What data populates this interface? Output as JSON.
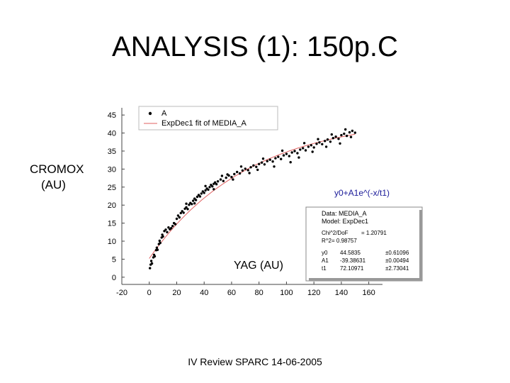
{
  "slide": {
    "title": "ANALYSIS (1): 150p.C",
    "ylabel_line1": "CROMOX",
    "ylabel_line2": "(AU)",
    "xlabel": "YAG (AU)",
    "footer": "IV Review SPARC 14-06-2005"
  },
  "chart_data": {
    "type": "scatter",
    "xlim": [
      -20,
      170
    ],
    "ylim": [
      -2,
      47
    ],
    "xticks": [
      "-20",
      "0",
      "20",
      "40",
      "60",
      "80",
      "100",
      "120",
      "140",
      "160"
    ],
    "yticks": [
      "0",
      "5",
      "10",
      "15",
      "20",
      "25",
      "30",
      "35",
      "40",
      "45"
    ],
    "legend": {
      "placement": "top-left",
      "entries": [
        "A",
        "ExpDec1 fit of MEDIA_A"
      ]
    },
    "series": [
      {
        "name": "A",
        "points": [
          [
            0.5,
            2.5
          ],
          [
            1,
            3.5
          ],
          [
            1.5,
            4.5
          ],
          [
            2,
            3.8
          ],
          [
            3,
            5.5
          ],
          [
            3.5,
            6.2
          ],
          [
            4,
            5.8
          ],
          [
            5,
            7.5
          ],
          [
            5.5,
            8.2
          ],
          [
            6,
            7.6
          ],
          [
            7,
            9.2
          ],
          [
            7.5,
            10.1
          ],
          [
            8,
            9.5
          ],
          [
            9,
            11
          ],
          [
            9.5,
            11.8
          ],
          [
            10,
            11.3
          ],
          [
            11,
            12.8
          ],
          [
            12,
            13.2
          ],
          [
            13,
            12.5
          ],
          [
            14,
            13.8
          ],
          [
            15,
            13.3
          ],
          [
            16,
            13.6
          ],
          [
            17,
            14.2
          ],
          [
            18,
            15
          ],
          [
            19,
            14.7
          ],
          [
            20,
            16.2
          ],
          [
            21,
            17.1
          ],
          [
            22,
            16.6
          ],
          [
            23,
            17.8
          ],
          [
            24,
            18.3
          ],
          [
            25,
            17.9
          ],
          [
            26,
            19
          ],
          [
            27,
            19.4
          ],
          [
            28,
            18.9
          ],
          [
            29,
            20.1
          ],
          [
            30,
            20.6
          ],
          [
            31,
            20.3
          ],
          [
            32,
            21.2
          ],
          [
            33,
            21.8
          ],
          [
            34,
            21.4
          ],
          [
            35,
            22.3
          ],
          [
            36,
            22.8
          ],
          [
            37,
            22.4
          ],
          [
            38,
            23.2
          ],
          [
            39,
            23.8
          ],
          [
            40,
            23.4
          ],
          [
            41,
            24.1
          ],
          [
            42,
            24.6
          ],
          [
            43,
            24.3
          ],
          [
            44,
            25
          ],
          [
            45,
            25.6
          ],
          [
            46,
            25.2
          ],
          [
            47,
            25.9
          ],
          [
            48,
            26.3
          ],
          [
            49,
            25.8
          ],
          [
            50,
            26.6
          ],
          [
            52,
            27.1
          ],
          [
            54,
            26.7
          ],
          [
            56,
            27.6
          ],
          [
            58,
            28.2
          ],
          [
            60,
            27.8
          ],
          [
            62,
            28.6
          ],
          [
            64,
            29.2
          ],
          [
            66,
            28.8
          ],
          [
            68,
            29.6
          ],
          [
            70,
            30.1
          ],
          [
            72,
            29.7
          ],
          [
            74,
            30.5
          ],
          [
            76,
            31
          ],
          [
            78,
            30.6
          ],
          [
            80,
            31.4
          ],
          [
            82,
            31.8
          ],
          [
            84,
            31.3
          ],
          [
            86,
            32.2
          ],
          [
            88,
            32.6
          ],
          [
            90,
            32.1
          ],
          [
            92,
            33
          ],
          [
            94,
            33.4
          ],
          [
            96,
            32.8
          ],
          [
            98,
            33.8
          ],
          [
            100,
            34.2
          ],
          [
            102,
            33.6
          ],
          [
            104,
            34.6
          ],
          [
            106,
            35
          ],
          [
            108,
            34.4
          ],
          [
            110,
            35.4
          ],
          [
            112,
            35.8
          ],
          [
            114,
            35.2
          ],
          [
            116,
            36.2
          ],
          [
            118,
            36.6
          ],
          [
            120,
            36
          ],
          [
            122,
            37
          ],
          [
            124,
            37.4
          ],
          [
            126,
            36.9
          ],
          [
            128,
            37.8
          ],
          [
            130,
            38.2
          ],
          [
            132,
            37.6
          ],
          [
            134,
            38.6
          ],
          [
            136,
            39
          ],
          [
            138,
            38.4
          ],
          [
            140,
            39.4
          ],
          [
            142,
            39.8
          ],
          [
            144,
            39.2
          ],
          [
            146,
            40.2
          ],
          [
            148,
            40.6
          ],
          [
            150,
            40.1
          ],
          [
            57,
            28.5
          ],
          [
            61,
            27.1
          ],
          [
            79,
            29.8
          ],
          [
            83,
            32.9
          ],
          [
            91,
            30.7
          ],
          [
            97,
            35.1
          ],
          [
            103,
            31.9
          ],
          [
            109,
            33.2
          ],
          [
            113,
            37.2
          ],
          [
            119,
            34.8
          ],
          [
            123,
            38.3
          ],
          [
            129,
            36.2
          ],
          [
            133,
            39.6
          ],
          [
            139,
            37.1
          ],
          [
            143,
            41
          ],
          [
            147,
            38.9
          ],
          [
            27,
            20.4
          ],
          [
            33,
            20.5
          ],
          [
            41,
            25.3
          ],
          [
            47,
            24.4
          ],
          [
            53,
            28.1
          ],
          [
            67,
            30.7
          ],
          [
            73,
            28.9
          ]
        ]
      },
      {
        "name": "ExpDec1 fit of MEDIA_A",
        "fit": {
          "y0": 44.5835,
          "A1": -39.38631,
          "t1": 72.10971
        }
      }
    ],
    "annotations": {
      "formula": "y0+A1e^(-x/t1)",
      "stats": {
        "data": "Data: MEDIA_A",
        "model": "Model: ExpDec1",
        "chi_label": "Chi^2/DoF",
        "chi_value": "= 1.20791",
        "r_label": "R^2",
        "r_value": "= 0.98757",
        "params": [
          {
            "name": "y0",
            "value": "44.5835",
            "err": "±0.61096"
          },
          {
            "name": "A1",
            "value": "-39.38631",
            "err": "±0.00494"
          },
          {
            "name": "t1",
            "value": "72.10971",
            "err": "±2.73041"
          }
        ]
      }
    },
    "colors": {
      "points": "#000000",
      "fit": "#e06060",
      "formula": "#1a1a99"
    }
  }
}
